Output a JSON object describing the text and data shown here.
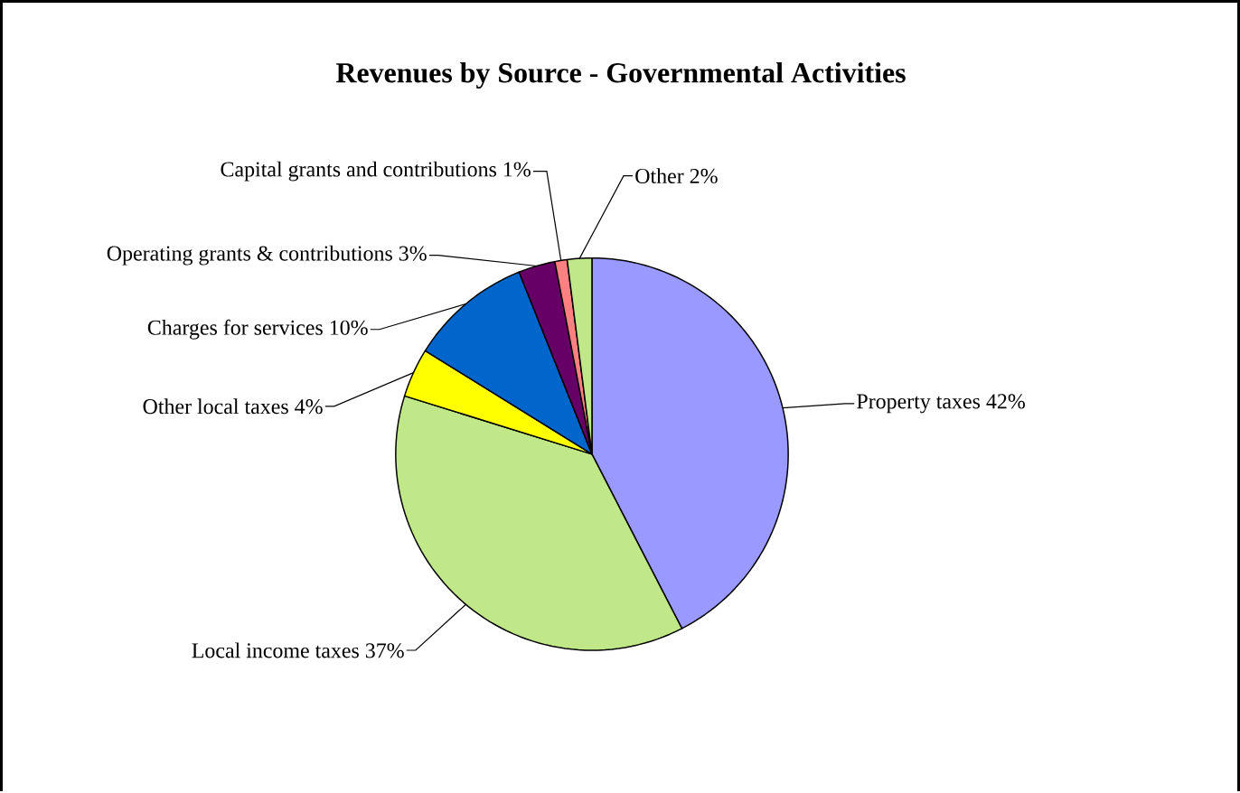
{
  "chart_data": {
    "type": "pie",
    "title": "Revenues by Source - Governmental Activities",
    "categories": [
      "Property taxes",
      "Local income taxes",
      "Other local taxes",
      "Charges for services",
      "Operating grants & contributions",
      "Capital grants and contributions",
      "Other"
    ],
    "values": [
      42,
      37,
      4,
      10,
      3,
      1,
      2
    ],
    "value_labels": [
      "42%",
      "37%",
      "4%",
      "10%",
      "3%",
      "1%",
      "2%"
    ],
    "colors": [
      "#9999ff",
      "#c0e888",
      "#ffff00",
      "#0066cc",
      "#660066",
      "#ff8080",
      "#c0e888"
    ]
  }
}
